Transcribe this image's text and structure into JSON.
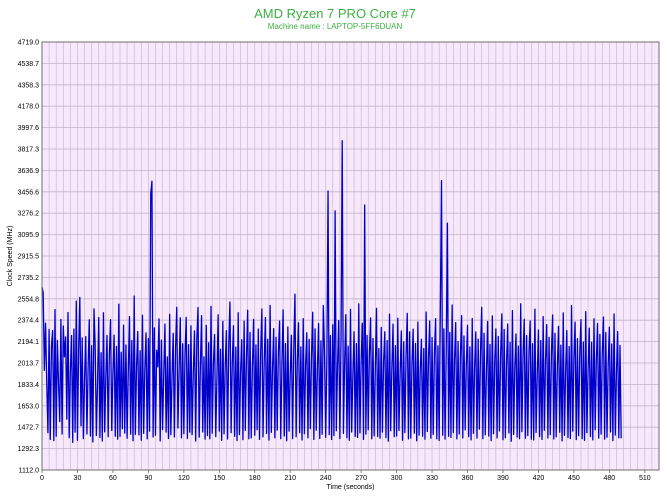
{
  "chart_data": {
    "type": "line",
    "title": "AMD Ryzen 7 PRO Core #7",
    "subtitle": "Machine name : LAPTOP-5FF6DUAN",
    "xlabel": "Time (seconds)",
    "ylabel": "Clock Speed (MHz)",
    "xlim": [
      0,
      522
    ],
    "ylim": [
      1112.0,
      4719.0
    ],
    "x_ticks": [
      0,
      30,
      60,
      90,
      120,
      150,
      180,
      210,
      240,
      270,
      300,
      330,
      360,
      390,
      420,
      450,
      480,
      510
    ],
    "y_ticks": [
      "1112.0",
      "1292.3",
      "1472.7",
      "1653.0",
      "1833.4",
      "2013.7",
      "2194.1",
      "2374.4",
      "2554.8",
      "2735.2",
      "2915.5",
      "3095.9",
      "3276.2",
      "3456.6",
      "3636.9",
      "3817.3",
      "3997.6",
      "4178.0",
      "4358.3",
      "4538.7",
      "4719.0"
    ],
    "grid": true,
    "colors": {
      "line": "#0000cc",
      "plot_bg": "#f7e8fb",
      "grid": "#c4b4c8",
      "title": "#3cb043"
    },
    "series": [
      {
        "name": "",
        "sample_interval_s": 1,
        "values": [
          2654,
          2606,
          1952,
          2350,
          1854,
          1427,
          2297,
          1370,
          2154,
          2287,
          1360,
          2463,
          1397,
          2204,
          1839,
          1520,
          2380,
          1415,
          2325,
          2066,
          2234,
          1541,
          2439,
          1384,
          1946,
          2245,
          1345,
          2300,
          1431,
          2535,
          1363,
          2129,
          2567,
          1485,
          2225,
          1377,
          1879,
          2236,
          1416,
          1971,
          2378,
          1398,
          2160,
          1348,
          2470,
          2153,
          1403,
          1855,
          2397,
          1386,
          2101,
          1356,
          2437,
          1433,
          1894,
          2245,
          1392,
          2090,
          2379,
          1445,
          1931,
          2248,
          1397,
          2154,
          1372,
          2510,
          1395,
          2104,
          1460,
          2333,
          1423,
          2165,
          1380,
          1942,
          2404,
          1414,
          2203,
          1359,
          2578,
          1412,
          1987,
          2279,
          1408,
          2117,
          1363,
          2416,
          1421,
          1963,
          2267,
          1375,
          2220,
          1440,
          3441,
          3546,
          1390,
          2310,
          1405,
          2121,
          1981,
          2385,
          1357,
          2206,
          1452,
          1923,
          2341,
          1431,
          2065,
          1378,
          2424,
          1409,
          1890,
          2264,
          1390,
          2144,
          2483,
          1466,
          1956,
          2395,
          1383,
          2176,
          1419,
          2091,
          2398,
          1378,
          2168,
          1431,
          2327,
          1410,
          1925,
          2284,
          1356,
          2222,
          2481,
          1389,
          1987,
          2413,
          1432,
          2065,
          1372,
          2331,
          1403,
          2184,
          1375,
          2491,
          1422,
          2007,
          2254,
          1393,
          1887,
          2420,
          1440,
          2129,
          1362,
          2364,
          1417,
          1981,
          2286,
          1373,
          2167,
          2528,
          1427,
          2019,
          2327,
          1396,
          2147,
          1361,
          2437,
          1410,
          1937,
          2210,
          1368,
          2365,
          1446,
          2056,
          2458,
          1375,
          2272,
          1383,
          1978,
          2381,
          1405,
          2166,
          1451,
          2300,
          1370,
          2101,
          2469,
          1392,
          2023,
          2397,
          1420,
          2214,
          1364,
          2498,
          1429,
          1957,
          2303,
          1384,
          2230,
          1448,
          2111,
          2366,
          1376,
          2018,
          2461,
          1399,
          2178,
          1359,
          2317,
          1440,
          1904,
          2247,
          1377,
          2127,
          2594,
          1392,
          2021,
          2353,
          1426,
          2149,
          1365,
          2387,
          1418,
          1990,
          2268,
          1383,
          2213,
          1461,
          2074,
          2441,
          1369,
          2301,
          1447,
          1960,
          2346,
          1378,
          2200,
          1413,
          2498,
          2117,
          1387,
          2030,
          3463,
          1410,
          2245,
          1369,
          2336,
          1402,
          3296,
          1443,
          1988,
          2371,
          1377,
          2230,
          3888,
          1421,
          1995,
          2420,
          1384,
          2156,
          1363,
          2465,
          1432,
          1910,
          2277,
          1395,
          2178,
          1386,
          2512,
          1425,
          2027,
          2349,
          1369,
          3345,
          1414,
          2246,
          1451,
          2091,
          2394,
          1375,
          2220,
          1400,
          1966,
          2474,
          1393,
          2136,
          1380,
          2313,
          1431,
          2024,
          2277,
          1385,
          2202,
          1355,
          2425,
          1443,
          1974,
          2341,
          1392,
          2160,
          1399,
          2391,
          1445,
          1928,
          2283,
          1363,
          2192,
          1427,
          2069,
          2432,
          1374,
          2276,
          1381,
          2004,
          2299,
          1422,
          2179,
          1359,
          2358,
          1406,
          1953,
          2214,
          1397,
          2136,
          1371,
          2443,
          1437,
          2052,
          2366,
          1380,
          2228,
          1412,
          2094,
          2387,
          1375,
          2158,
          1361,
          2470,
          3551,
          1405,
          2301,
          1372,
          2119,
          3192,
          1396,
          2272,
          1386,
          2502,
          1427,
          2040,
          2355,
          1374,
          2195,
          1415,
          2081,
          2413,
          1382,
          2241,
          1450,
          2003,
          2332,
          1393,
          2149,
          1366,
          2389,
          1422,
          1980,
          2276,
          1381,
          2215,
          1457,
          2106,
          2483,
          1376,
          2263,
          1408,
          1938,
          2363,
          1398,
          2170,
          1360,
          2411,
          1418,
          2019,
          2301,
          1383,
          2237,
          1441,
          2070,
          2428,
          1367,
          2296,
          1384,
          2013,
          2342,
          1424,
          2187,
          1354,
          2455,
          1412,
          1970,
          2258,
          1389,
          2156,
          1376,
          2513,
          1435,
          2086,
          2382,
          1380,
          2245,
          1403,
          2108,
          2368,
          1371,
          2176,
          1365,
          2468,
          1428,
          1915,
          2292,
          1393,
          2203,
          1369,
          2404,
          1447,
          2045,
          2337,
          1382,
          2229,
          1410,
          2098,
          2418,
          1373,
          2264,
          1391,
          1983,
          2322,
          1430,
          2164,
          1358,
          2436,
          1404,
          1939,
          2287,
          1385,
          2153,
          1377,
          2497,
          1440,
          2060,
          2358,
          1368,
          2219,
          1402,
          2113,
          2379,
          1377,
          2191,
          1362,
          2447,
          1426,
          1947,
          2307,
          1394,
          2188,
          1366,
          2386,
          1451,
          2032,
          2346,
          1381,
          2255,
          1414,
          2089,
          2401,
          1372,
          2272,
          1388,
          1996,
          2316,
          1432,
          2174,
          1360,
          2426,
          1406,
          1928,
          2279,
          1383,
          2161,
          1379
        ]
      }
    ]
  }
}
